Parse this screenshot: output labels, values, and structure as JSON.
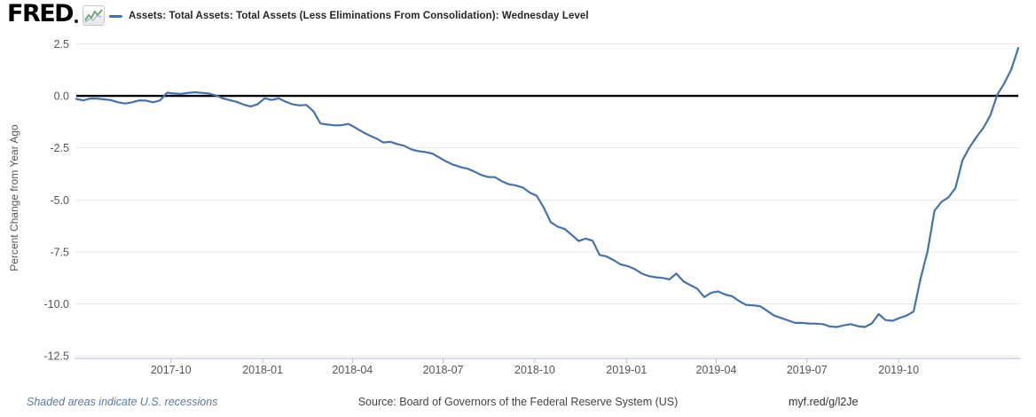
{
  "header": {
    "logo_text": "FRED",
    "legend_label": "Assets: Total Assets: Total Assets (Less Eliminations From Consolidation): Wednesday Level"
  },
  "footer": {
    "recession_note": "Shaded areas indicate U.S. recessions",
    "source": "Source: Board of Governors of the Federal Reserve System (US)",
    "short_url": "myf.red/g/l2Je"
  },
  "chart_data": {
    "type": "line",
    "title": "Assets: Total Assets: Total Assets (Less Eliminations From Consolidation): Wednesday Level",
    "xlabel": "",
    "ylabel": "Percent Change from Year Ago",
    "grid": "horizontal",
    "zero_line": true,
    "legend_position": "top",
    "x_range": [
      "2017-06-28",
      "2020-01-29"
    ],
    "ylim": [
      -12.62,
      2.9
    ],
    "y_ticks": [
      "2.5",
      "0.0",
      "-2.5",
      "-5.0",
      "-7.5",
      "-10.0",
      "-12.5"
    ],
    "x_ticks": [
      {
        "label": "2017-10",
        "date": "2017-10-01"
      },
      {
        "label": "2018-01",
        "date": "2018-01-01"
      },
      {
        "label": "2018-04",
        "date": "2018-04-01"
      },
      {
        "label": "2018-07",
        "date": "2018-07-01"
      },
      {
        "label": "2018-10",
        "date": "2018-10-01"
      },
      {
        "label": "2019-01",
        "date": "2019-01-01"
      },
      {
        "label": "2019-04",
        "date": "2019-04-01"
      },
      {
        "label": "2019-07",
        "date": "2019-07-01"
      },
      {
        "label": "2019-10",
        "date": "2019-10-01"
      }
    ],
    "series": [
      {
        "name": "Assets: Total Assets: Total Assets (Less Eliminations From Consolidation): Wednesday Level",
        "color": "#4572a7",
        "unit": "percent change from year ago",
        "frequency": "weekly-wednesday",
        "start_date": "2017-06-28",
        "end_date": "2020-01-29",
        "values": [
          -0.15,
          -0.22,
          -0.13,
          -0.13,
          -0.17,
          -0.21,
          -0.31,
          -0.37,
          -0.31,
          -0.22,
          -0.23,
          -0.31,
          -0.22,
          0.15,
          0.11,
          0.09,
          0.14,
          0.17,
          0.14,
          0.11,
          0.02,
          -0.12,
          -0.21,
          -0.29,
          -0.42,
          -0.51,
          -0.4,
          -0.12,
          -0.2,
          -0.12,
          -0.28,
          -0.41,
          -0.46,
          -0.44,
          -0.75,
          -1.33,
          -1.38,
          -1.42,
          -1.41,
          -1.35,
          -1.53,
          -1.73,
          -1.9,
          -2.05,
          -2.24,
          -2.21,
          -2.32,
          -2.4,
          -2.57,
          -2.66,
          -2.7,
          -2.77,
          -2.96,
          -3.15,
          -3.31,
          -3.42,
          -3.49,
          -3.63,
          -3.8,
          -3.9,
          -3.91,
          -4.11,
          -4.25,
          -4.31,
          -4.41,
          -4.65,
          -4.81,
          -5.38,
          -6.07,
          -6.29,
          -6.4,
          -6.68,
          -6.98,
          -6.86,
          -6.96,
          -7.65,
          -7.72,
          -7.89,
          -8.1,
          -8.18,
          -8.32,
          -8.53,
          -8.66,
          -8.72,
          -8.75,
          -8.82,
          -8.54,
          -8.91,
          -9.1,
          -9.27,
          -9.67,
          -9.46,
          -9.4,
          -9.55,
          -9.63,
          -9.86,
          -10.05,
          -10.07,
          -10.11,
          -10.33,
          -10.56,
          -10.67,
          -10.79,
          -10.91,
          -10.91,
          -10.94,
          -10.95,
          -10.97,
          -11.08,
          -11.11,
          -11.03,
          -10.97,
          -11.07,
          -11.11,
          -10.94,
          -10.49,
          -10.78,
          -10.81,
          -10.67,
          -10.56,
          -10.37,
          -8.78,
          -7.48,
          -5.52,
          -5.09,
          -4.88,
          -4.43,
          -3.1,
          -2.49,
          -1.98,
          -1.54,
          -0.94,
          0.06,
          0.6,
          1.27,
          2.3
        ]
      }
    ]
  }
}
